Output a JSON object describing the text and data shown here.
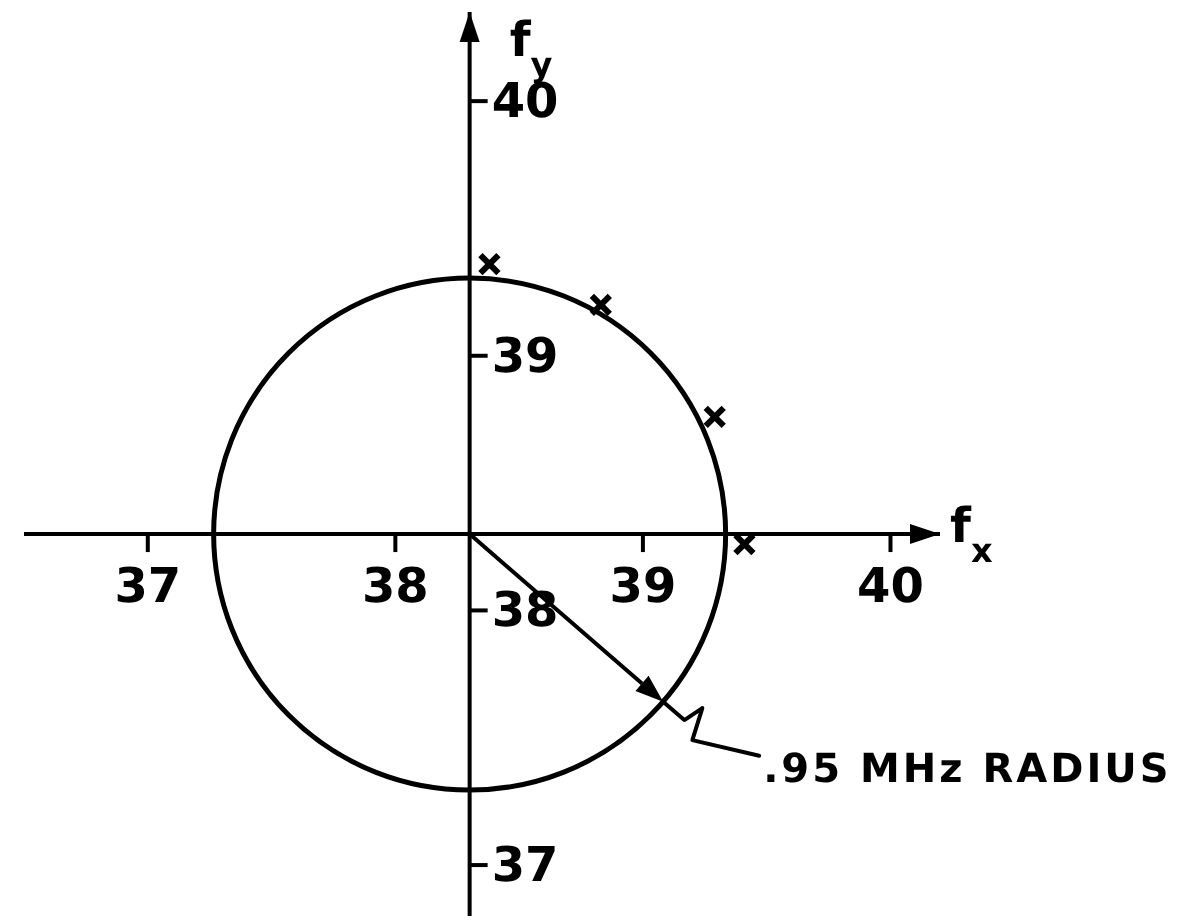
{
  "chart_data": {
    "type": "scatter",
    "xlabel": "f$_{x}$",
    "ylabel": "f$_{y}$",
    "annotations": [
      ".95 MHz RADIUS"
    ],
    "series": [
      {
        "color": "#000000",
        "marker": "cross",
        "x": [
          38.38,
          38.83,
          39.29,
          39.41
        ],
        "values": [
          39.36,
          39.2,
          38.76,
          38.26
        ]
      }
    ],
    "xlim": [
      36.5,
      40.2
    ],
    "ylim": [
      36.8,
      40.35
    ],
    "xticks": [
      37,
      38,
      39,
      40
    ],
    "yticks": [
      37,
      38,
      39,
      40
    ]
  }
}
